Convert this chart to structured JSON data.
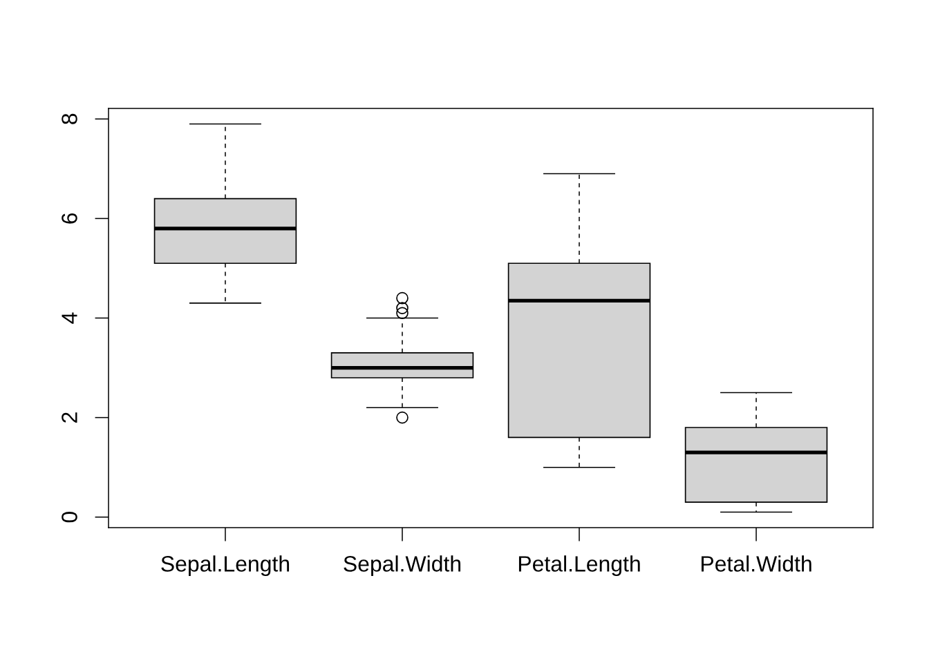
{
  "chart_data": {
    "type": "box",
    "categories": [
      "Sepal.Length",
      "Sepal.Width",
      "Petal.Length",
      "Petal.Width"
    ],
    "boxes": [
      {
        "low": 4.3,
        "q1": 5.1,
        "median": 5.8,
        "q3": 6.4,
        "high": 7.9
      },
      {
        "low": 2.2,
        "q1": 2.8,
        "median": 3.0,
        "q3": 3.3,
        "high": 4.0,
        "outliers": [
          4.4,
          4.1,
          4.2,
          2.0
        ]
      },
      {
        "low": 1.0,
        "q1": 1.6,
        "median": 4.35,
        "q3": 5.1,
        "high": 6.9
      },
      {
        "low": 0.1,
        "q1": 0.3,
        "median": 1.3,
        "q3": 1.8,
        "high": 2.5
      }
    ],
    "color": "#d3d3d3",
    "ylim": [
      -0.212,
      8.212
    ],
    "yticks": [
      0,
      2,
      4,
      6,
      8
    ]
  }
}
